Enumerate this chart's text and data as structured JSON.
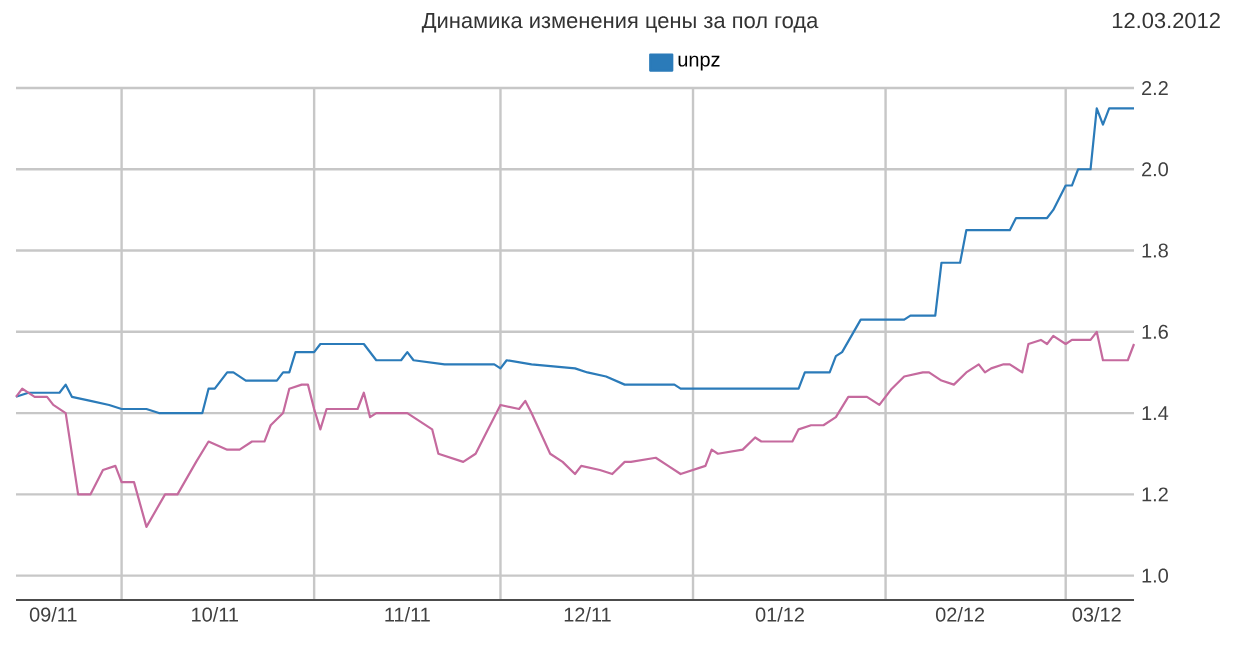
{
  "chart_data": {
    "type": "line",
    "title": "Динамика изменения цены за пол года",
    "annotations": [
      "12.03.2012"
    ],
    "xlim": [
      "2011-09-14",
      "2012-03-12"
    ],
    "xticks": [
      {
        "value": "2011-09-20",
        "label": "09/11"
      },
      {
        "value": "2011-10-01",
        "label": null
      },
      {
        "value": "2011-10-16",
        "label": "10/11"
      },
      {
        "value": "2011-11-01",
        "label": null
      },
      {
        "value": "2011-11-16",
        "label": "11/11"
      },
      {
        "value": "2011-12-01",
        "label": null
      },
      {
        "value": "2011-12-15",
        "label": "12/11"
      },
      {
        "value": "2012-01-01",
        "label": null
      },
      {
        "value": "2012-01-15",
        "label": "01/12"
      },
      {
        "value": "2012-02-01",
        "label": null
      },
      {
        "value": "2012-02-13",
        "label": "02/12"
      },
      {
        "value": "2012-03-01",
        "label": null
      },
      {
        "value": "2012-03-06",
        "label": "03/12"
      }
    ],
    "ylim": [
      0.94,
      2.2
    ],
    "yticks": [
      {
        "value": 1.0,
        "label": "1.0"
      },
      1.2,
      1.4,
      1.6,
      1.8,
      {
        "value": 2.0,
        "label": "2.0"
      },
      2.2
    ],
    "grid": true,
    "legend": "top",
    "marker": "none",
    "line_style": "solid",
    "series": [
      {
        "name": "unpz",
        "color": "#2b7bb9",
        "x": [
          "2011-09-14",
          "2011-09-16",
          "2011-09-21",
          "2011-09-22",
          "2011-09-23",
          "2011-09-26",
          "2011-09-29",
          "2011-10-01",
          "2011-10-05",
          "2011-10-07",
          "2011-10-14",
          "2011-10-15",
          "2011-10-16",
          "2011-10-18",
          "2011-10-19",
          "2011-10-21",
          "2011-10-26",
          "2011-10-27",
          "2011-10-28",
          "2011-10-29",
          "2011-11-01",
          "2011-11-02",
          "2011-11-09",
          "2011-11-11",
          "2011-11-15",
          "2011-11-16",
          "2011-11-17",
          "2011-11-22",
          "2011-11-30",
          "2011-12-01",
          "2011-12-02",
          "2011-12-06",
          "2011-12-13",
          "2011-12-15",
          "2011-12-18",
          "2011-12-21",
          "2011-12-29",
          "2011-12-30",
          "2012-01-18",
          "2012-01-19",
          "2012-01-23",
          "2012-01-24",
          "2012-01-25",
          "2012-01-28",
          "2012-02-04",
          "2012-02-05",
          "2012-02-09",
          "2012-02-10",
          "2012-02-13",
          "2012-02-14",
          "2012-02-21",
          "2012-02-22",
          "2012-02-27",
          "2012-02-28",
          "2012-03-01",
          "2012-03-02",
          "2012-03-03",
          "2012-03-05",
          "2012-03-06",
          "2012-03-07",
          "2012-03-08",
          "2012-03-12"
        ],
        "values": [
          1.44,
          1.45,
          1.45,
          1.47,
          1.44,
          1.43,
          1.42,
          1.41,
          1.41,
          1.4,
          1.4,
          1.46,
          1.46,
          1.5,
          1.5,
          1.48,
          1.48,
          1.5,
          1.5,
          1.55,
          1.55,
          1.57,
          1.57,
          1.53,
          1.53,
          1.55,
          1.53,
          1.52,
          1.52,
          1.51,
          1.53,
          1.52,
          1.51,
          1.5,
          1.49,
          1.47,
          1.47,
          1.46,
          1.46,
          1.5,
          1.5,
          1.54,
          1.55,
          1.63,
          1.63,
          1.64,
          1.64,
          1.77,
          1.77,
          1.85,
          1.85,
          1.88,
          1.88,
          1.9,
          1.96,
          1.96,
          2.0,
          2.0,
          2.15,
          2.11,
          2.15,
          2.15
        ]
      },
      {
        "color": "#c56a9e",
        "x": [
          "2011-09-14",
          "2011-09-15",
          "2011-09-17",
          "2011-09-19",
          "2011-09-20",
          "2011-09-22",
          "2011-09-24",
          "2011-09-26",
          "2011-09-28",
          "2011-09-30",
          "2011-10-01",
          "2011-10-03",
          "2011-10-05",
          "2011-10-08",
          "2011-10-10",
          "2011-10-13",
          "2011-10-15",
          "2011-10-18",
          "2011-10-20",
          "2011-10-22",
          "2011-10-24",
          "2011-10-25",
          "2011-10-27",
          "2011-10-28",
          "2011-10-30",
          "2011-10-31",
          "2011-11-01",
          "2011-11-02",
          "2011-11-03",
          "2011-11-08",
          "2011-11-09",
          "2011-11-10",
          "2011-11-11",
          "2011-11-16",
          "2011-11-20",
          "2011-11-21",
          "2011-11-25",
          "2011-11-27",
          "2011-11-29",
          "2011-12-01",
          "2011-12-04",
          "2011-12-05",
          "2011-12-06",
          "2011-12-09",
          "2011-12-11",
          "2011-12-13",
          "2011-12-14",
          "2011-12-17",
          "2011-12-19",
          "2011-12-21",
          "2011-12-22",
          "2011-12-26",
          "2011-12-28",
          "2011-12-30",
          "2012-01-01",
          "2012-01-03",
          "2012-01-04",
          "2012-01-05",
          "2012-01-09",
          "2012-01-11",
          "2012-01-12",
          "2012-01-17",
          "2012-01-18",
          "2012-01-20",
          "2012-01-22",
          "2012-01-24",
          "2012-01-26",
          "2012-01-29",
          "2012-01-31",
          "2012-02-02",
          "2012-02-04",
          "2012-02-07",
          "2012-02-08",
          "2012-02-10",
          "2012-02-12",
          "2012-02-14",
          "2012-02-16",
          "2012-02-17",
          "2012-02-18",
          "2012-02-20",
          "2012-02-21",
          "2012-02-23",
          "2012-02-24",
          "2012-02-26",
          "2012-02-27",
          "2012-02-28",
          "2012-03-01",
          "2012-03-02",
          "2012-03-05",
          "2012-03-06",
          "2012-03-07",
          "2012-03-11",
          "2012-03-12"
        ],
        "values": [
          1.44,
          1.46,
          1.44,
          1.44,
          1.42,
          1.4,
          1.2,
          1.2,
          1.26,
          1.27,
          1.23,
          1.23,
          1.12,
          1.2,
          1.2,
          1.28,
          1.33,
          1.31,
          1.31,
          1.33,
          1.33,
          1.37,
          1.4,
          1.46,
          1.47,
          1.47,
          1.41,
          1.36,
          1.41,
          1.41,
          1.45,
          1.39,
          1.4,
          1.4,
          1.36,
          1.3,
          1.28,
          1.3,
          1.36,
          1.42,
          1.41,
          1.43,
          1.4,
          1.3,
          1.28,
          1.25,
          1.27,
          1.26,
          1.25,
          1.28,
          1.28,
          1.29,
          1.27,
          1.25,
          1.26,
          1.27,
          1.31,
          1.3,
          1.31,
          1.34,
          1.33,
          1.33,
          1.36,
          1.37,
          1.37,
          1.39,
          1.44,
          1.44,
          1.42,
          1.46,
          1.49,
          1.5,
          1.5,
          1.48,
          1.47,
          1.5,
          1.52,
          1.5,
          1.51,
          1.52,
          1.52,
          1.5,
          1.57,
          1.58,
          1.57,
          1.59,
          1.57,
          1.58,
          1.58,
          1.6,
          1.53,
          1.53,
          1.57
        ]
      }
    ]
  }
}
